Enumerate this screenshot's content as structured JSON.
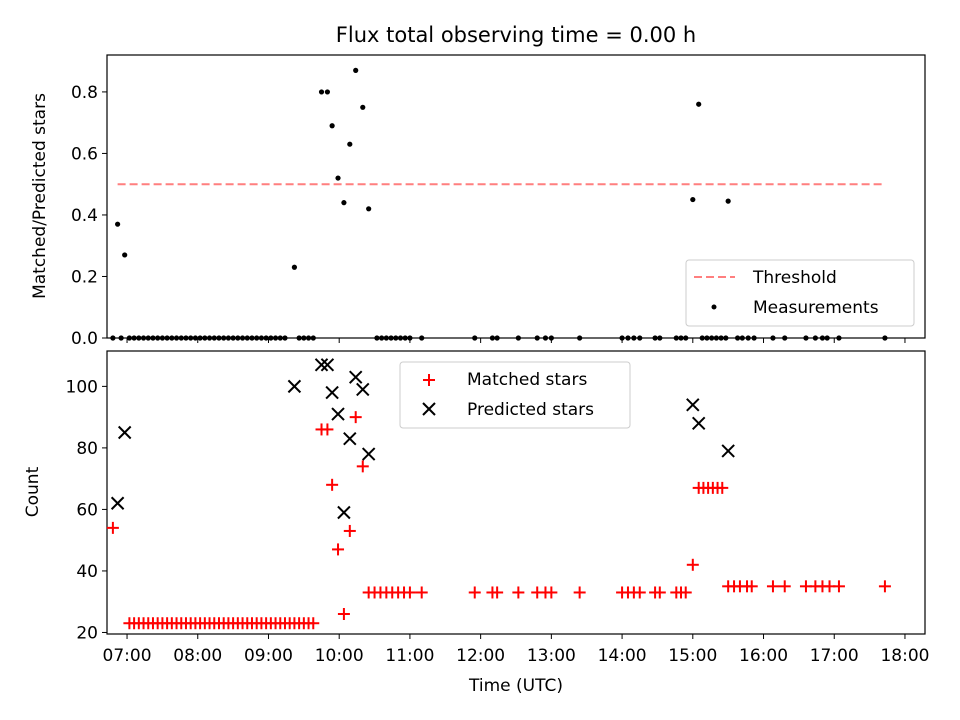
{
  "figure": {
    "title": "Flux total observing time = 0.00 h",
    "xlabel": "Time (UTC)",
    "xtick_labels": [
      "07:00",
      "08:00",
      "09:00",
      "10:00",
      "11:00",
      "12:00",
      "13:00",
      "14:00",
      "15:00",
      "16:00",
      "17:00",
      "18:00"
    ]
  },
  "chart_data": [
    {
      "type": "scatter",
      "panel": "top",
      "ylabel": "Matched/Predicted stars",
      "xlim": [
        "06:43",
        "18:17"
      ],
      "ylim": [
        0,
        0.92
      ],
      "yticks": [
        0.0,
        0.2,
        0.4,
        0.6,
        0.8
      ],
      "ytick_labels": [
        "0.0",
        "0.2",
        "0.4",
        "0.6",
        "0.8"
      ],
      "grid": false,
      "legend_position": "lower-right",
      "threshold": {
        "name": "Threshold",
        "value": 0.5,
        "x_start": "06:52",
        "x_end": "17:43",
        "color": "#ff7f7f"
      },
      "series": [
        {
          "name": "Measurements",
          "color": "#000000",
          "points": [
            [
              "06:52",
              0.37
            ],
            [
              "06:58",
              0.27
            ],
            [
              "09:22",
              0.23
            ],
            [
              "09:45",
              0.8
            ],
            [
              "09:50",
              0.8
            ],
            [
              "09:54",
              0.69
            ],
            [
              "09:59",
              0.52
            ],
            [
              "10:04",
              0.44
            ],
            [
              "10:09",
              0.63
            ],
            [
              "10:14",
              0.87
            ],
            [
              "10:20",
              0.75
            ],
            [
              "10:25",
              0.42
            ],
            [
              "15:00",
              0.45
            ],
            [
              "15:05",
              0.76
            ],
            [
              "15:30",
              0.445
            ],
            [
              "06:48",
              0
            ],
            [
              "06:55",
              0
            ],
            [
              "07:02",
              0
            ],
            [
              "07:06",
              0
            ],
            [
              "07:10",
              0
            ],
            [
              "07:14",
              0
            ],
            [
              "07:18",
              0
            ],
            [
              "07:22",
              0
            ],
            [
              "07:26",
              0
            ],
            [
              "07:30",
              0
            ],
            [
              "07:34",
              0
            ],
            [
              "07:38",
              0
            ],
            [
              "07:42",
              0
            ],
            [
              "07:46",
              0
            ],
            [
              "07:50",
              0
            ],
            [
              "07:54",
              0
            ],
            [
              "07:58",
              0
            ],
            [
              "08:02",
              0
            ],
            [
              "08:06",
              0
            ],
            [
              "08:10",
              0
            ],
            [
              "08:14",
              0
            ],
            [
              "08:18",
              0
            ],
            [
              "08:22",
              0
            ],
            [
              "08:26",
              0
            ],
            [
              "08:30",
              0
            ],
            [
              "08:34",
              0
            ],
            [
              "08:38",
              0
            ],
            [
              "08:42",
              0
            ],
            [
              "08:46",
              0
            ],
            [
              "08:50",
              0
            ],
            [
              "08:54",
              0
            ],
            [
              "08:58",
              0
            ],
            [
              "09:02",
              0
            ],
            [
              "09:06",
              0
            ],
            [
              "09:10",
              0
            ],
            [
              "09:14",
              0
            ],
            [
              "09:26",
              0
            ],
            [
              "09:30",
              0
            ],
            [
              "09:34",
              0
            ],
            [
              "09:38",
              0
            ],
            [
              "10:32",
              0
            ],
            [
              "10:36",
              0
            ],
            [
              "10:40",
              0
            ],
            [
              "10:44",
              0
            ],
            [
              "10:48",
              0
            ],
            [
              "10:52",
              0
            ],
            [
              "10:56",
              0
            ],
            [
              "11:00",
              0
            ],
            [
              "11:10",
              0
            ],
            [
              "11:55",
              0
            ],
            [
              "12:10",
              0
            ],
            [
              "12:14",
              0
            ],
            [
              "12:32",
              0
            ],
            [
              "12:48",
              0
            ],
            [
              "12:55",
              0
            ],
            [
              "13:00",
              0
            ],
            [
              "13:24",
              0
            ],
            [
              "14:00",
              0
            ],
            [
              "14:05",
              0
            ],
            [
              "14:10",
              0
            ],
            [
              "14:15",
              0
            ],
            [
              "14:28",
              0
            ],
            [
              "14:32",
              0
            ],
            [
              "14:46",
              0
            ],
            [
              "14:50",
              0
            ],
            [
              "14:54",
              0
            ],
            [
              "15:08",
              0
            ],
            [
              "15:12",
              0
            ],
            [
              "15:16",
              0
            ],
            [
              "15:20",
              0
            ],
            [
              "15:24",
              0
            ],
            [
              "15:28",
              0
            ],
            [
              "15:38",
              0
            ],
            [
              "15:42",
              0
            ],
            [
              "15:47",
              0
            ],
            [
              "15:52",
              0
            ],
            [
              "16:08",
              0
            ],
            [
              "16:18",
              0
            ],
            [
              "16:36",
              0
            ],
            [
              "16:44",
              0
            ],
            [
              "16:50",
              0
            ],
            [
              "16:54",
              0
            ],
            [
              "17:04",
              0
            ],
            [
              "17:43",
              0
            ]
          ]
        }
      ]
    },
    {
      "type": "scatter",
      "panel": "bottom",
      "ylabel": "Count",
      "xlabel": "Time (UTC)",
      "xlim": [
        "06:43",
        "18:17"
      ],
      "ylim": [
        19.5,
        111.5
      ],
      "yticks": [
        20,
        40,
        60,
        80,
        100
      ],
      "ytick_labels": [
        "20",
        "40",
        "60",
        "80",
        "100"
      ],
      "grid": false,
      "legend_position": "upper-center",
      "series": [
        {
          "name": "Matched stars",
          "marker": "+",
          "color": "#ff0000",
          "points": [
            [
              "06:48",
              54
            ],
            [
              "07:02",
              23
            ],
            [
              "07:06",
              23
            ],
            [
              "07:10",
              23
            ],
            [
              "07:14",
              23
            ],
            [
              "07:18",
              23
            ],
            [
              "07:22",
              23
            ],
            [
              "07:26",
              23
            ],
            [
              "07:30",
              23
            ],
            [
              "07:34",
              23
            ],
            [
              "07:38",
              23
            ],
            [
              "07:42",
              23
            ],
            [
              "07:46",
              23
            ],
            [
              "07:50",
              23
            ],
            [
              "07:54",
              23
            ],
            [
              "07:58",
              23
            ],
            [
              "08:02",
              23
            ],
            [
              "08:06",
              23
            ],
            [
              "08:10",
              23
            ],
            [
              "08:14",
              23
            ],
            [
              "08:18",
              23
            ],
            [
              "08:22",
              23
            ],
            [
              "08:26",
              23
            ],
            [
              "08:30",
              23
            ],
            [
              "08:34",
              23
            ],
            [
              "08:38",
              23
            ],
            [
              "08:42",
              23
            ],
            [
              "08:46",
              23
            ],
            [
              "08:50",
              23
            ],
            [
              "08:54",
              23
            ],
            [
              "08:58",
              23
            ],
            [
              "09:02",
              23
            ],
            [
              "09:06",
              23
            ],
            [
              "09:10",
              23
            ],
            [
              "09:14",
              23
            ],
            [
              "09:18",
              23
            ],
            [
              "09:22",
              23
            ],
            [
              "09:26",
              23
            ],
            [
              "09:30",
              23
            ],
            [
              "09:34",
              23
            ],
            [
              "09:38",
              23
            ],
            [
              "09:45",
              86
            ],
            [
              "09:50",
              86
            ],
            [
              "09:54",
              68
            ],
            [
              "09:59",
              47
            ],
            [
              "10:04",
              26
            ],
            [
              "10:09",
              53
            ],
            [
              "10:14",
              90
            ],
            [
              "10:20",
              74
            ],
            [
              "10:25",
              33
            ],
            [
              "10:30",
              33
            ],
            [
              "10:35",
              33
            ],
            [
              "10:40",
              33
            ],
            [
              "10:45",
              33
            ],
            [
              "10:50",
              33
            ],
            [
              "10:55",
              33
            ],
            [
              "11:00",
              33
            ],
            [
              "11:10",
              33
            ],
            [
              "11:55",
              33
            ],
            [
              "12:10",
              33
            ],
            [
              "12:14",
              33
            ],
            [
              "12:32",
              33
            ],
            [
              "12:48",
              33
            ],
            [
              "12:55",
              33
            ],
            [
              "13:00",
              33
            ],
            [
              "13:24",
              33
            ],
            [
              "14:00",
              33
            ],
            [
              "14:05",
              33
            ],
            [
              "14:10",
              33
            ],
            [
              "14:15",
              33
            ],
            [
              "14:28",
              33
            ],
            [
              "14:32",
              33
            ],
            [
              "14:46",
              33
            ],
            [
              "14:50",
              33
            ],
            [
              "14:54",
              33
            ],
            [
              "15:00",
              42
            ],
            [
              "15:05",
              67
            ],
            [
              "15:09",
              67
            ],
            [
              "15:13",
              67
            ],
            [
              "15:17",
              67
            ],
            [
              "15:21",
              67
            ],
            [
              "15:25",
              67
            ],
            [
              "15:30",
              35
            ],
            [
              "15:35",
              35
            ],
            [
              "15:40",
              35
            ],
            [
              "15:46",
              35
            ],
            [
              "15:50",
              35
            ],
            [
              "16:08",
              35
            ],
            [
              "16:18",
              35
            ],
            [
              "16:36",
              35
            ],
            [
              "16:44",
              35
            ],
            [
              "16:50",
              35
            ],
            [
              "16:56",
              35
            ],
            [
              "17:04",
              35
            ],
            [
              "17:43",
              35
            ]
          ]
        },
        {
          "name": "Predicted stars",
          "marker": "x",
          "color": "#000000",
          "points": [
            [
              "06:52",
              62
            ],
            [
              "06:58",
              85
            ],
            [
              "09:22",
              100
            ],
            [
              "09:45",
              107
            ],
            [
              "09:50",
              107
            ],
            [
              "09:54",
              98
            ],
            [
              "09:59",
              91
            ],
            [
              "10:04",
              59
            ],
            [
              "10:09",
              83
            ],
            [
              "10:14",
              103
            ],
            [
              "10:20",
              99
            ],
            [
              "10:25",
              78
            ],
            [
              "15:00",
              94
            ],
            [
              "15:05",
              88
            ],
            [
              "15:30",
              79
            ]
          ]
        }
      ]
    }
  ]
}
